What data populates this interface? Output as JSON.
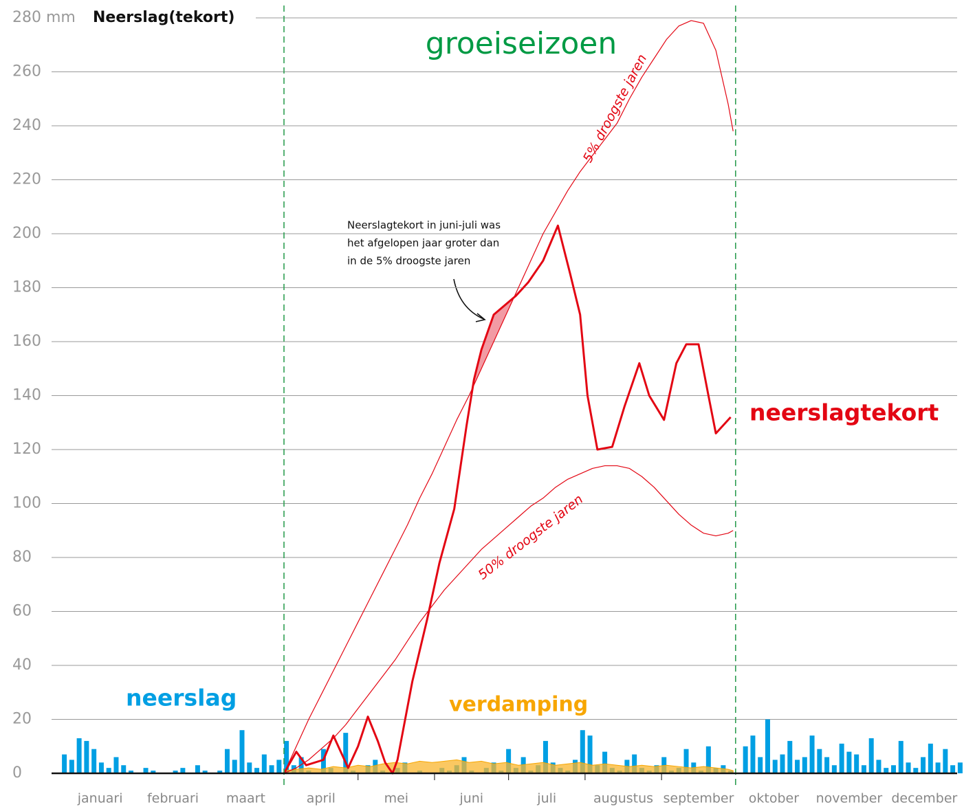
{
  "chart_data": {
    "type": "line",
    "title": "Neerslag(tekort)",
    "annotations": {
      "season": "groeiseizoen",
      "callout": [
        "Neerslagtekort in juni-juli was",
        "het afgelopen jaar groter dan",
        "in de 5% droogste jaren"
      ]
    },
    "months": [
      "januari",
      "februari",
      "maart",
      "april",
      "mei",
      "juni",
      "juli",
      "augustus",
      "september",
      "oktober",
      "november",
      "december"
    ],
    "season_start": 90,
    "season_end": 273,
    "xlim": [
      0,
      365
    ],
    "ylim": [
      0,
      280
    ],
    "yticks": [
      0,
      20,
      40,
      60,
      80,
      100,
      120,
      140,
      160,
      180,
      200,
      220,
      240,
      260,
      {
        "value": 280,
        "label": "280 mm"
      }
    ],
    "grid": true,
    "series": [
      {
        "name": "neerslagtekort",
        "kind": "line",
        "color": "#e30613",
        "x": [
          90,
          95,
          99,
          106,
          110,
          113,
          116,
          120,
          124,
          128,
          131,
          134,
          136,
          142,
          148,
          153,
          159,
          164,
          167,
          170,
          175,
          184,
          189,
          195,
          201,
          206,
          210,
          213,
          217,
          223,
          228,
          234,
          238,
          244,
          249,
          253,
          258,
          262,
          265,
          271
        ],
        "values": [
          0,
          8,
          3,
          5,
          14,
          8,
          2,
          10,
          21,
          12,
          4,
          0,
          5,
          34,
          57,
          78,
          98,
          129,
          146,
          157,
          170,
          177,
          182,
          190,
          203,
          185,
          170,
          140,
          120,
          121,
          136,
          152,
          140,
          131,
          152,
          159,
          159,
          140,
          126,
          132
        ]
      },
      {
        "name": "5% droogste jaren",
        "kind": "line",
        "color": "#e30613",
        "x": [
          90,
          95,
          100,
          105,
          110,
          115,
          120,
          125,
          130,
          135,
          140,
          145,
          150,
          155,
          160,
          165,
          170,
          175,
          180,
          185,
          190,
          195,
          200,
          205,
          210,
          215,
          220,
          225,
          230,
          235,
          240,
          245,
          250,
          255,
          260,
          265,
          270,
          272
        ],
        "values": [
          0,
          10,
          20,
          29,
          38,
          47,
          56,
          65,
          74,
          83,
          92,
          102,
          111,
          121,
          131,
          140,
          150,
          160,
          170,
          180,
          190,
          200,
          208,
          216,
          223,
          229,
          235,
          241,
          250,
          258,
          265,
          272,
          277,
          279,
          278,
          268,
          248,
          238
        ]
      },
      {
        "name": "50% droogste jaren",
        "kind": "line",
        "color": "#e30613",
        "x": [
          90,
          95,
          100,
          105,
          110,
          115,
          120,
          125,
          130,
          135,
          140,
          145,
          150,
          155,
          160,
          165,
          170,
          175,
          180,
          185,
          190,
          195,
          200,
          205,
          210,
          215,
          220,
          225,
          230,
          235,
          240,
          245,
          250,
          255,
          260,
          265,
          270,
          272
        ],
        "values": [
          0,
          2,
          5,
          9,
          13,
          18,
          24,
          30,
          36,
          42,
          49,
          56,
          62,
          68,
          73,
          78,
          83,
          87,
          91,
          95,
          99,
          102,
          106,
          109,
          111,
          113,
          114,
          114,
          113,
          110,
          106,
          101,
          96,
          92,
          89,
          88,
          89,
          90
        ]
      },
      {
        "name": "neerslag",
        "kind": "bar",
        "color": "#009fe3",
        "x": [
          1,
          4,
          7,
          10,
          13,
          16,
          19,
          22,
          25,
          28,
          31,
          34,
          37,
          40,
          43,
          46,
          49,
          52,
          55,
          58,
          61,
          64,
          67,
          70,
          73,
          76,
          79,
          82,
          85,
          88,
          91,
          94,
          97,
          100,
          103,
          106,
          109,
          112,
          115,
          118,
          121,
          124,
          127,
          130,
          133,
          136,
          139,
          142,
          145,
          148,
          151,
          154,
          157,
          160,
          163,
          166,
          169,
          172,
          175,
          178,
          181,
          184,
          187,
          190,
          193,
          196,
          199,
          202,
          205,
          208,
          211,
          214,
          217,
          220,
          223,
          226,
          229,
          232,
          235,
          238,
          241,
          244,
          247,
          250,
          253,
          256,
          259,
          262,
          265,
          268,
          271,
          274,
          277,
          280,
          283,
          286,
          289,
          292,
          295,
          298,
          301,
          304,
          307,
          310,
          313,
          316,
          319,
          322,
          325,
          328,
          331,
          334,
          337,
          340,
          343,
          346,
          349,
          352,
          355,
          358,
          361,
          364
        ],
        "values": [
          7,
          5,
          13,
          12,
          9,
          4,
          2,
          6,
          3,
          1,
          0,
          2,
          1,
          0,
          0,
          1,
          2,
          0,
          3,
          1,
          0,
          1,
          9,
          5,
          16,
          4,
          2,
          7,
          3,
          5,
          12,
          3,
          6,
          1,
          0,
          9,
          2,
          0,
          15,
          1,
          0,
          3,
          5,
          1,
          0,
          2,
          4,
          0,
          1,
          0,
          0,
          2,
          1,
          3,
          6,
          1,
          0,
          2,
          4,
          1,
          9,
          2,
          6,
          1,
          3,
          12,
          4,
          2,
          1,
          5,
          16,
          14,
          3,
          8,
          2,
          1,
          5,
          7,
          2,
          1,
          3,
          6,
          1,
          2,
          9,
          4,
          1,
          10,
          2,
          3,
          1,
          0,
          10,
          14,
          6,
          20,
          5,
          7,
          12,
          5,
          6,
          14,
          9,
          6,
          3,
          11,
          8,
          7,
          3,
          13,
          5,
          2,
          3,
          12,
          4,
          2,
          6,
          11,
          4,
          9,
          3,
          4
        ]
      },
      {
        "name": "verdamping",
        "kind": "area",
        "color": "#f7a600",
        "x": [
          90,
          95,
          100,
          105,
          110,
          115,
          120,
          125,
          130,
          135,
          140,
          145,
          150,
          155,
          160,
          165,
          170,
          175,
          180,
          185,
          190,
          195,
          200,
          205,
          210,
          215,
          220,
          225,
          230,
          235,
          240,
          245,
          250,
          255,
          260,
          265,
          270,
          272
        ],
        "values": [
          1,
          1.5,
          2,
          1.5,
          2.5,
          2,
          3,
          2.5,
          3.5,
          4,
          3.5,
          4.5,
          4,
          4.5,
          5,
          4,
          4.5,
          3.5,
          4,
          3,
          3.5,
          4,
          3,
          3.5,
          4,
          3,
          3.5,
          3,
          2.5,
          3,
          2.5,
          3,
          2.5,
          2,
          2.5,
          2,
          1.5,
          1
        ]
      }
    ]
  }
}
